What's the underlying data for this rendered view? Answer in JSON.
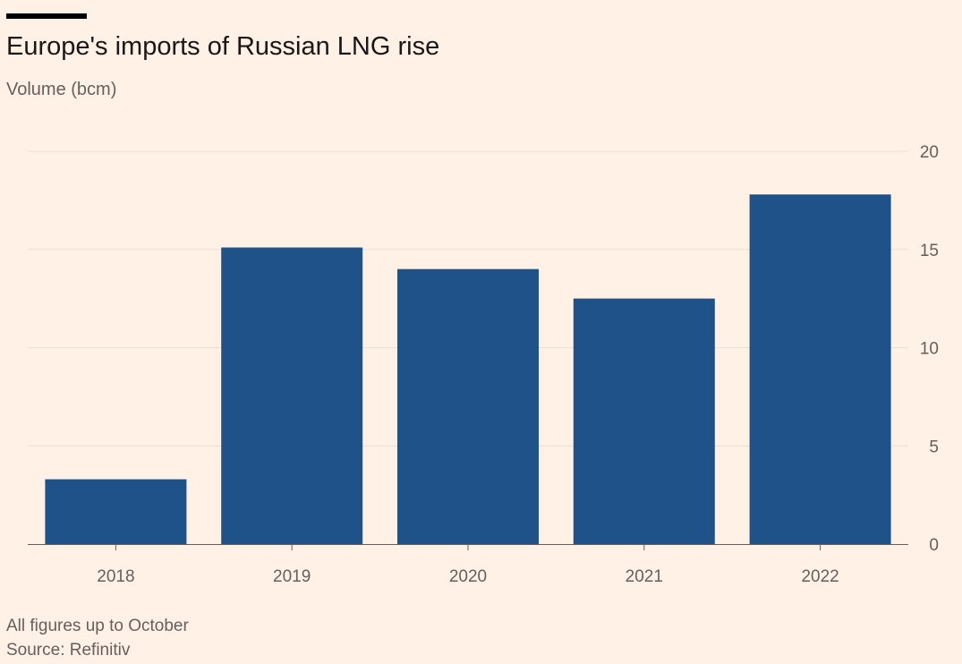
{
  "header": {
    "title": "Europe's imports of Russian LNG rise",
    "subtitle": "Volume (bcm)"
  },
  "footer": {
    "note": "All figures up to October",
    "source": "Source: Refinitiv"
  },
  "colors": {
    "bar": "#20528a",
    "background": "#fff1e5",
    "gridline": "#ebdfd4",
    "axis": "#66605c"
  },
  "chart_data": {
    "type": "bar",
    "title": "Europe's imports of Russian LNG rise",
    "ylabel": "Volume (bcm)",
    "xlabel": "",
    "categories": [
      "2018",
      "2019",
      "2020",
      "2021",
      "2022"
    ],
    "values": [
      3.3,
      15.1,
      14.0,
      12.5,
      17.8
    ],
    "ylim": [
      0,
      20
    ],
    "yticks": [
      "0",
      "5",
      "10",
      "15",
      "20"
    ],
    "y_axis_side": "right",
    "grid": true
  }
}
